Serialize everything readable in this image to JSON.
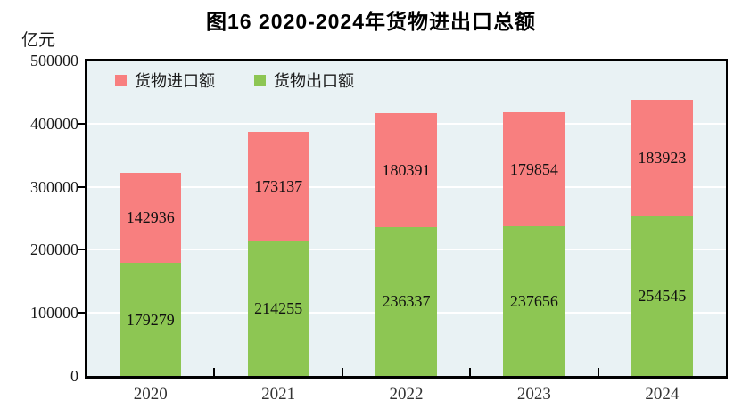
{
  "title": "图16  2020-2024年货物进出口总额",
  "unit_label": "亿元",
  "legend": {
    "items": [
      {
        "label": "货物进口额",
        "color": "#f87f7f"
      },
      {
        "label": "货物出口额",
        "color": "#8dc653"
      }
    ]
  },
  "chart_data": {
    "type": "bar",
    "stacked": true,
    "title": "图16  2020-2024年货物进出口总额",
    "ylabel": "亿元",
    "xlabel": "",
    "categories": [
      "2020",
      "2021",
      "2022",
      "2023",
      "2024"
    ],
    "series": [
      {
        "name": "货物出口额",
        "color": "#8dc653",
        "values": [
          179279,
          214255,
          236337,
          237656,
          254545
        ]
      },
      {
        "name": "货物进口额",
        "color": "#f87f7f",
        "values": [
          142936,
          173137,
          180391,
          179854,
          183923
        ]
      }
    ],
    "ylim": [
      0,
      500000
    ],
    "ytick_step": 100000,
    "ytick_labels": [
      "0",
      "100000",
      "200000",
      "300000",
      "400000",
      "500000"
    ],
    "grid": "horizontal",
    "gridline_color": "#ffffff",
    "plot_background": "#e9f2f4",
    "axis_color": "#000000",
    "legend_position": "top-left-inside",
    "value_labels": "centered-in-segment"
  }
}
